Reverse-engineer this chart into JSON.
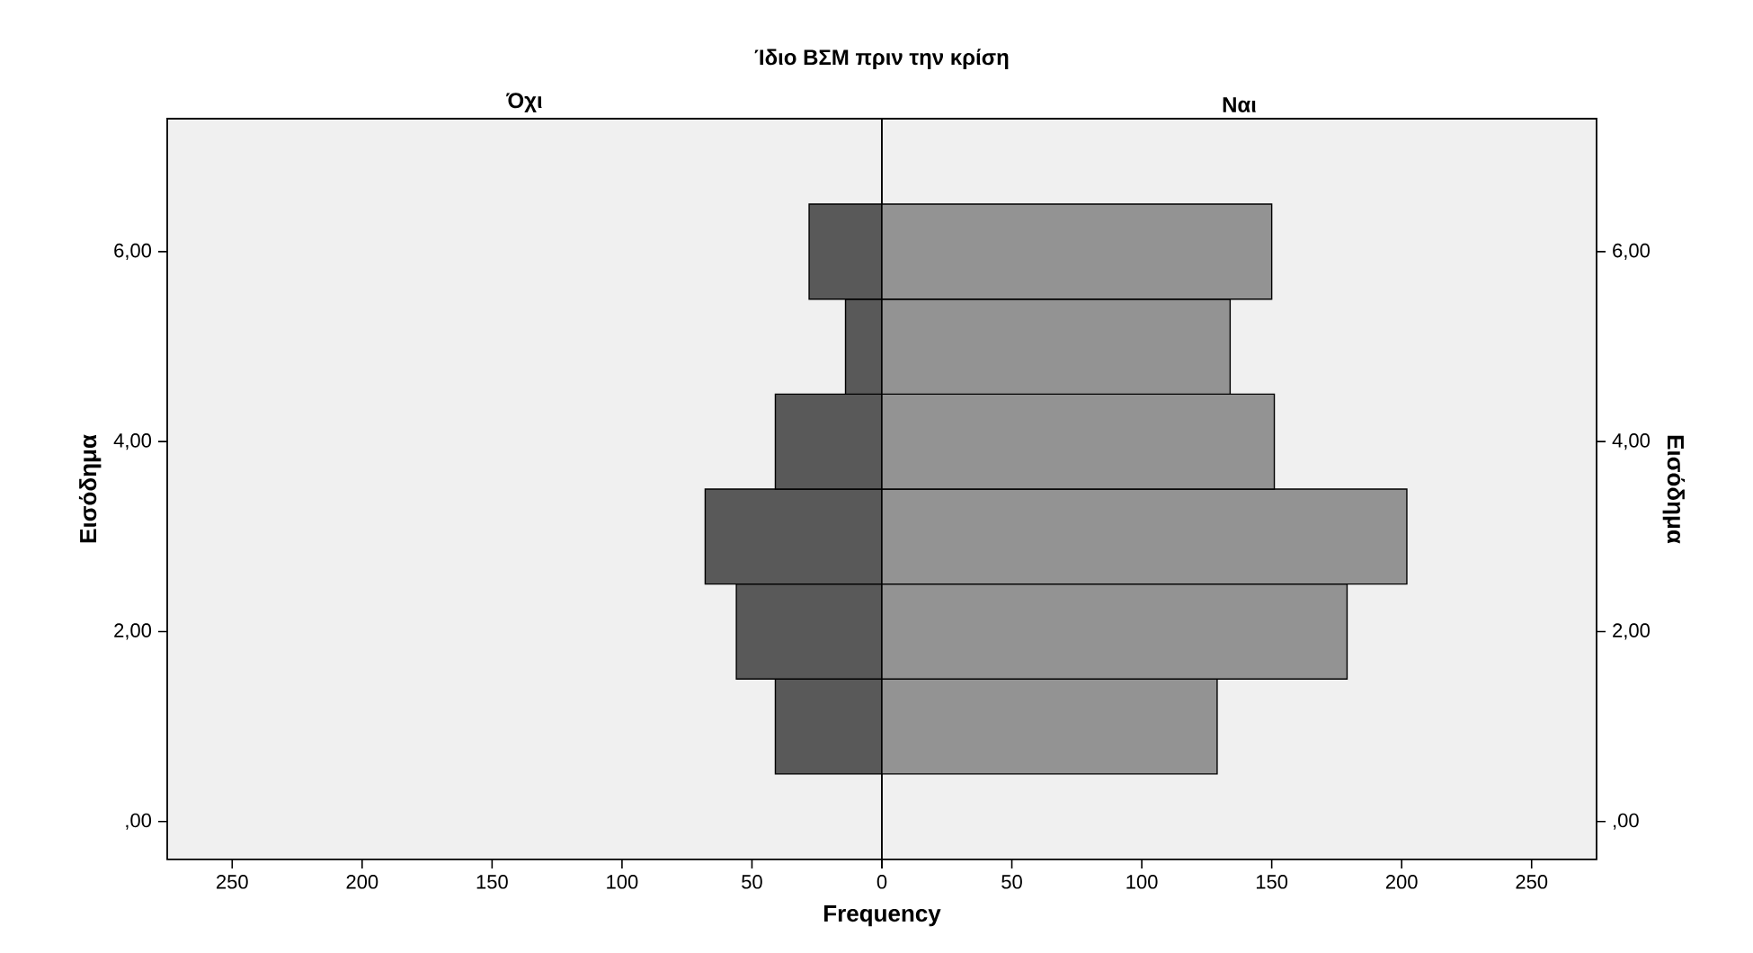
{
  "chart_data": [
    {
      "type": "histogram",
      "orientation": "horizontal",
      "title": "Ίδιο ΒΣΜ πριν την κρίση",
      "subtitle": "Όχι",
      "xlabel": "Frequency",
      "ylabel": "Εισόδημα",
      "bins": [
        0.5,
        1.5,
        2.5,
        3.5,
        4.5,
        5.5,
        6.5
      ],
      "values": [
        41,
        56,
        68,
        41,
        14,
        28
      ],
      "color": "#595959",
      "xlim": [
        275,
        0
      ],
      "ylim": [
        -0.4,
        7.4
      ],
      "xticks": [
        {
          "value": 0,
          "label": null
        },
        50,
        100,
        150,
        200,
        250
      ],
      "yticks": [
        {
          "value": 0,
          "label": ",00"
        },
        {
          "value": 2,
          "label": "2,00"
        },
        {
          "value": 4,
          "label": "4,00"
        },
        {
          "value": 6,
          "label": "6,00"
        }
      ]
    },
    {
      "type": "histogram",
      "orientation": "horizontal",
      "subtitle": "Ναι",
      "ylabel": "Εισόδημα",
      "bins": [
        0.5,
        1.5,
        2.5,
        3.5,
        4.5,
        5.5,
        6.5
      ],
      "values": [
        129,
        179,
        202,
        151,
        134,
        150
      ],
      "color": "#939393",
      "xlim": [
        0,
        275
      ],
      "ylim": [
        -0.4,
        7.4
      ],
      "xticks": [
        0,
        50,
        100,
        150,
        200,
        250
      ],
      "yticks": [
        {
          "value": 0,
          "label": ",00"
        },
        {
          "value": 2,
          "label": "2,00"
        },
        {
          "value": 4,
          "label": "4,00"
        },
        {
          "value": 6,
          "label": "6,00"
        }
      ]
    }
  ]
}
